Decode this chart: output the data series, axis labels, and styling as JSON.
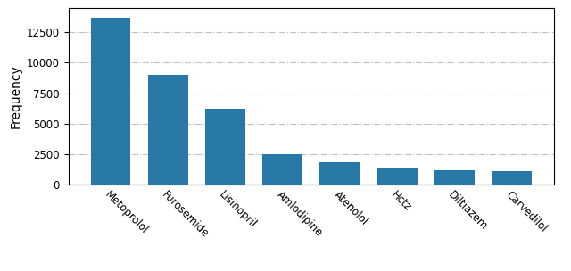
{
  "categories": [
    "Metoprolol",
    "Furosemide",
    "Lisinopril",
    "Amlodipine",
    "Atenolol",
    "Hctz",
    "Diltiazem",
    "Carvedilol"
  ],
  "values": [
    13700,
    9000,
    6200,
    2500,
    1800,
    1300,
    1150,
    1050
  ],
  "bar_color": "#2878a8",
  "ylabel": "Frequency",
  "ylim": [
    0,
    14500
  ],
  "yticks": [
    0,
    2500,
    5000,
    7500,
    10000,
    12500
  ],
  "grid_linestyle": "-.",
  "grid_color": "#c0c0c0",
  "bar_width": 0.7,
  "tick_labelsize": 8.5,
  "ylabel_fontsize": 10,
  "rotation": -45,
  "ha": "left"
}
